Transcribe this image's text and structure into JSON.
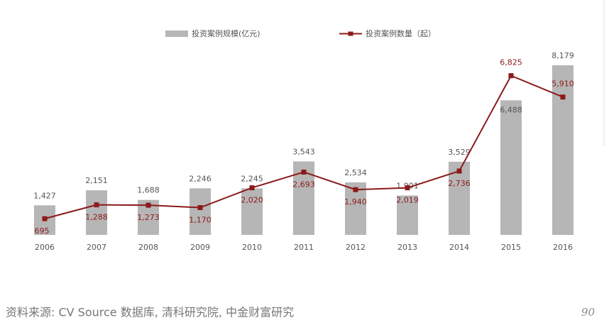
{
  "chart_data": {
    "type": "bar",
    "categories": [
      "2006",
      "2007",
      "2008",
      "2009",
      "2010",
      "2011",
      "2012",
      "2013",
      "2014",
      "2015",
      "2016"
    ],
    "series": [
      {
        "name": "投资案例规模(亿元)",
        "color": "#b7b6b6",
        "type": "bar",
        "values": [
          1427,
          2151,
          1688,
          2246,
          2245,
          3543,
          2534,
          1901,
          3529,
          6488,
          8179
        ],
        "value_labels": [
          "1,427",
          "2,151",
          "1,688",
          "2,246",
          "2,245",
          "3,543",
          "2,534",
          "1,901",
          "3,529",
          "6,488",
          "8,179"
        ]
      },
      {
        "name": "投资案例数量（起）",
        "color": "#8b1a1a",
        "type": "line",
        "axis": "y2",
        "values": [
          695,
          1288,
          1273,
          1170,
          2020,
          2693,
          1940,
          2019,
          2736,
          6825,
          5910
        ],
        "value_labels": [
          "695",
          "1,288",
          "1,273",
          "1,170",
          "2,020",
          "2,693",
          "1,940",
          "2,019",
          "2,736",
          "6,825",
          "5,910"
        ]
      }
    ],
    "ylim": [
      0,
      9000
    ],
    "y2lim": [
      0,
      8000
    ],
    "grid": false
  },
  "source": "资料来源: CV Source 数据库, 清科研究院, 中金财富研究",
  "page_number": "90"
}
